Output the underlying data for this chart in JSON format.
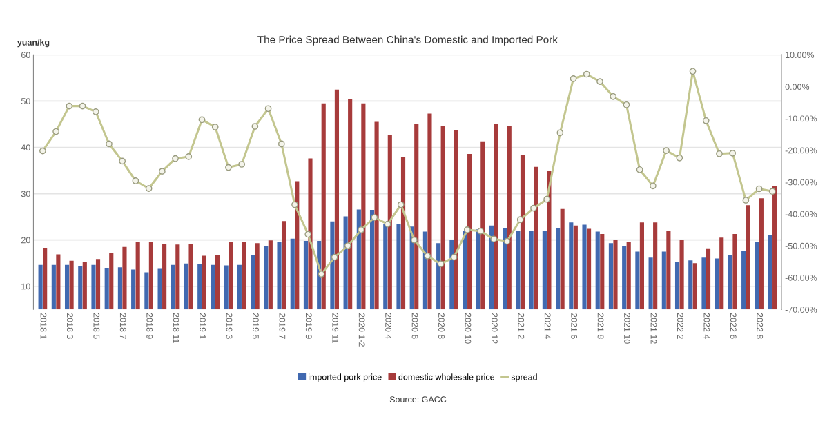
{
  "chart_data": {
    "type": "bar",
    "title": "The Price Spread Between China's Domestic and Imported Pork",
    "ylabel": "yuan/kg",
    "categories": [
      "2018 1",
      null,
      "2018 3",
      null,
      "2018 5",
      null,
      "2018 7",
      null,
      "2018 9",
      null,
      "2018 11",
      null,
      "2019 1",
      null,
      "2019 3",
      null,
      "2019 5",
      null,
      "2019 7",
      null,
      "2019 9",
      null,
      "2019 11",
      null,
      "2020 1-2",
      null,
      "2020 4",
      null,
      "2020 6",
      null,
      "2020 8",
      null,
      "2020 10",
      null,
      "2020 12",
      null,
      "2021 2",
      null,
      "2021 4",
      null,
      "2021 6",
      null,
      "2021 8",
      null,
      "2021 10",
      null,
      "2021 12",
      null,
      "2022 2",
      null,
      "2022 4",
      null,
      "2022 6",
      null,
      "2022 8",
      null
    ],
    "series": [
      {
        "name": "imported pork price",
        "color": "#4169b0",
        "values": [
          14.6,
          14.6,
          14.6,
          14.4,
          14.6,
          14.0,
          14.1,
          13.6,
          13.0,
          13.9,
          14.6,
          14.9,
          14.8,
          14.6,
          14.5,
          14.6,
          16.8,
          18.6,
          19.6,
          20.3,
          19.8,
          19.8,
          24.0,
          25.1,
          26.6,
          26.5,
          23.5,
          23.5,
          22.9,
          21.8,
          19.3,
          20.0,
          22.0,
          22.3,
          23.1,
          22.6,
          22.0,
          21.9,
          22.0,
          22.5,
          23.8,
          23.3,
          21.8,
          19.3,
          18.6,
          17.5,
          16.2,
          17.5,
          15.3,
          15.6,
          16.2,
          16.0,
          16.8,
          17.7,
          19.6,
          21.1
        ]
      },
      {
        "name": "domestic wholesale price",
        "color": "#a73b3b",
        "values": [
          18.3,
          16.9,
          15.5,
          15.3,
          15.9,
          17.2,
          18.5,
          19.5,
          19.5,
          19.1,
          19.0,
          19.1,
          16.6,
          16.8,
          19.5,
          19.5,
          19.3,
          19.9,
          24.1,
          32.7,
          37.6,
          49.5,
          52.5,
          50.5,
          49.5,
          45.5,
          42.7,
          38.0,
          45.1,
          47.3,
          44.6,
          43.8,
          38.6,
          41.3,
          45.1,
          44.6,
          38.3,
          35.8,
          34.9,
          26.7,
          23.1,
          22.4,
          21.3,
          20.0,
          19.6,
          23.8,
          23.8,
          22.0,
          20.0,
          15.0,
          18.2,
          20.5,
          21.3,
          27.5,
          29.0,
          31.7
        ]
      },
      {
        "name": "spread",
        "type": "line",
        "axis": "y2",
        "color": "#c3c68f",
        "marker": "circle",
        "values": [
          -20.2,
          -14.1,
          -6.1,
          -6.1,
          -7.9,
          -18.0,
          -23.4,
          -29.6,
          -32.0,
          -26.6,
          -22.6,
          -22.0,
          -10.4,
          -12.7,
          -25.4,
          -24.4,
          -12.5,
          -6.9,
          -18.0,
          -37.1,
          -46.4,
          -58.9,
          -53.6,
          -50.0,
          -45.0,
          -41.1,
          -43.2,
          -37.1,
          -48.2,
          -53.2,
          -55.7,
          -53.6,
          -45.0,
          -45.4,
          -47.9,
          -48.6,
          -41.8,
          -38.2,
          -35.4,
          -14.5,
          2.5,
          3.9,
          1.6,
          -3.1,
          -5.7,
          -26.1,
          -31.2,
          -20.1,
          -22.4,
          4.8,
          -10.7,
          -21.1,
          -20.9,
          -35.7,
          -32.1,
          -32.9
        ]
      }
    ],
    "ylim": [
      5,
      60
    ],
    "yticks": [
      10,
      20,
      30,
      40,
      50,
      60
    ],
    "y2lim": [
      -70,
      10
    ],
    "y2ticks": [
      {
        "value": -70,
        "label": "-70.00%"
      },
      {
        "value": -60,
        "label": "-60.00%"
      },
      {
        "value": -50,
        "label": "-50.00%"
      },
      {
        "value": -40,
        "label": "-40.00%"
      },
      {
        "value": -30,
        "label": "-30.00%"
      },
      {
        "value": -20,
        "label": "-20.00%"
      },
      {
        "value": -10,
        "label": "-10.00%"
      },
      {
        "value": 0,
        "label": "0.00%"
      },
      {
        "value": 10,
        "label": "10.00%"
      }
    ],
    "grid": "y",
    "legend": "bottom",
    "annotations": [
      "Source: GACC"
    ]
  }
}
